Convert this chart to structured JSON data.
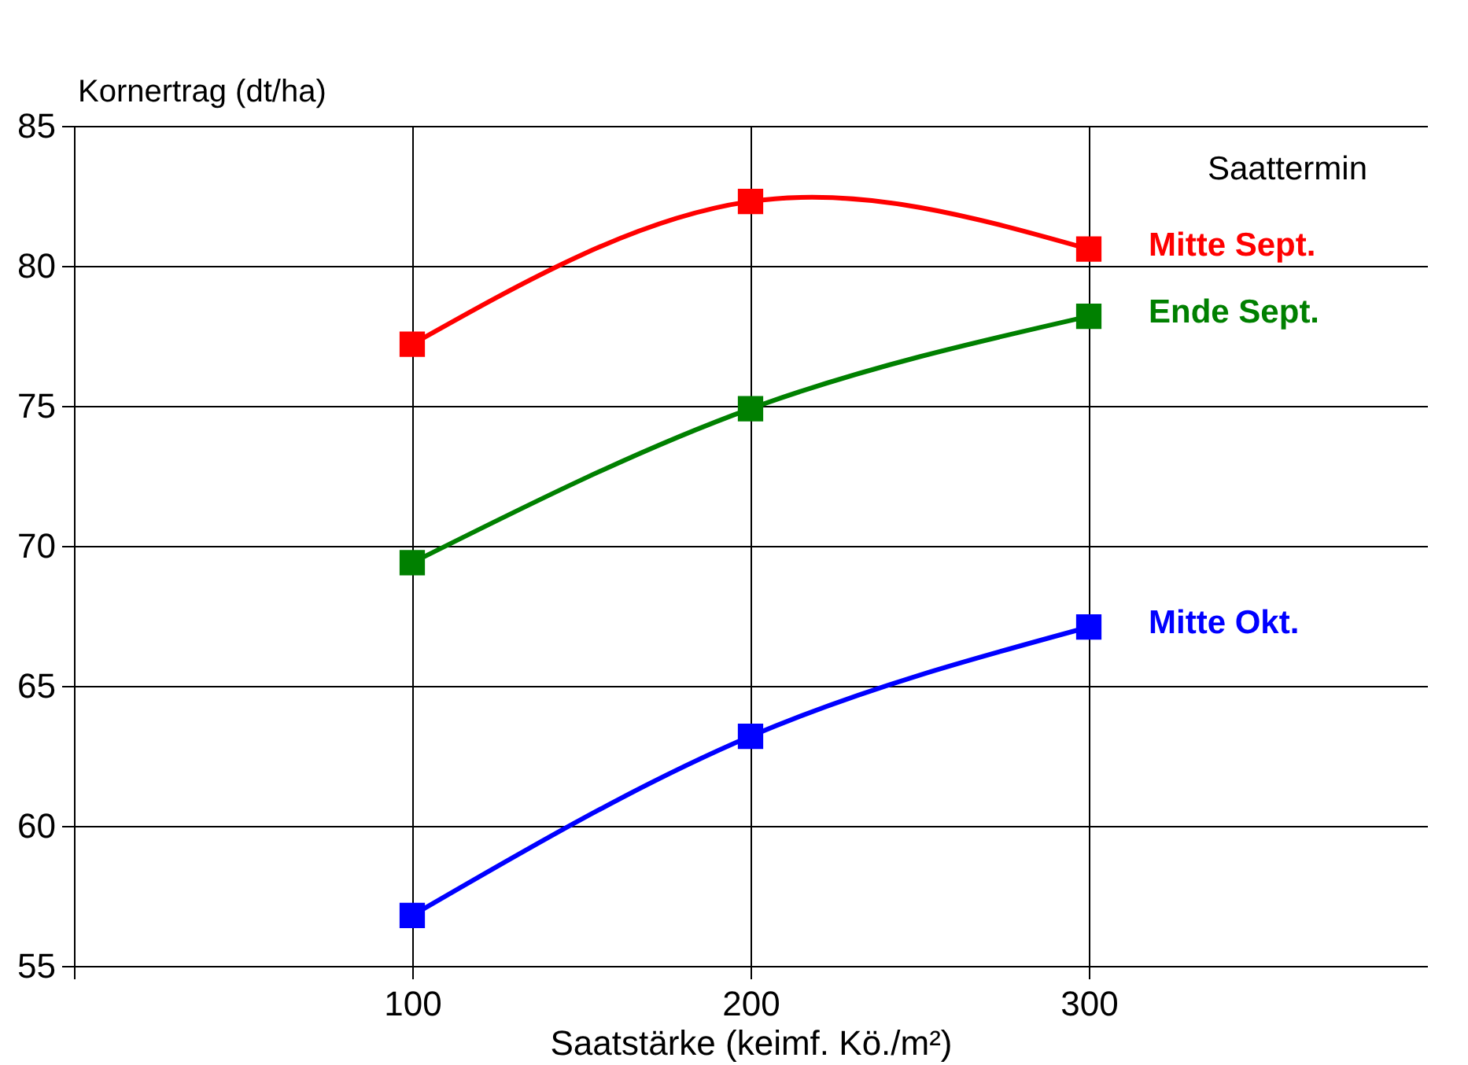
{
  "chart_data": {
    "type": "line",
    "xlabel": "Saatstärke (keimf. Kö./m²)",
    "ylabel": "Kornertrag (dt/ha)",
    "legend_title": "Saattermin",
    "x": [
      100,
      200,
      300
    ],
    "series": [
      {
        "name": "Mitte Sept.",
        "color": "#ff0000",
        "values": [
          77.2,
          82.3,
          80.6
        ]
      },
      {
        "name": "Ende Sept.",
        "color": "#008000",
        "values": [
          69.4,
          74.9,
          78.2
        ]
      },
      {
        "name": "Mitte Okt.",
        "color": "#0000ff",
        "values": [
          56.8,
          63.2,
          67.1
        ]
      }
    ],
    "xlim": [
      0,
      400
    ],
    "xticks": [
      {
        "value": 0,
        "label": null
      },
      100,
      200,
      300
    ],
    "ylim": [
      55,
      85
    ],
    "yticks": [
      55,
      60,
      65,
      70,
      75,
      80,
      85
    ],
    "grid": true,
    "marker": "square",
    "line_style": "solid",
    "legend": "right"
  }
}
